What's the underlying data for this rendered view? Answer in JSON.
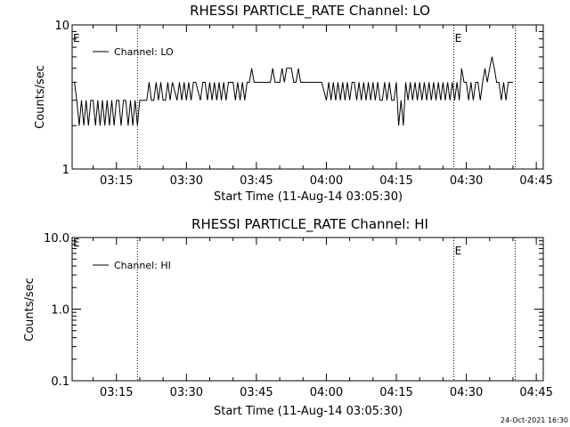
{
  "timestamp": "24-Oct-2021 16:30",
  "chart_data": [
    {
      "type": "line",
      "title": "RHESSI PARTICLE_RATE Channel: LO",
      "xlabel": "Start Time (11-Aug-14 03:05:30)",
      "ylabel": "Counts/sec",
      "y_scale": "log",
      "ylim": [
        1,
        10
      ],
      "y_ticks": [
        {
          "value": 1,
          "label": "1"
        },
        {
          "value": 10,
          "label": "10"
        }
      ],
      "xlim": [
        "03:05:30",
        "04:46:30"
      ],
      "x_ticks": [
        "03:15",
        "03:30",
        "03:45",
        "04:00",
        "04:15",
        "04:30",
        "04:45"
      ],
      "legend": {
        "placement": "top-left",
        "entries": [
          "Channel: LO"
        ]
      },
      "markers": [
        {
          "time": "03:19:30",
          "label": ""
        },
        {
          "time": "04:27:20",
          "label": "E"
        },
        {
          "time": "04:40:30",
          "label": ""
        }
      ],
      "left_flag": "E",
      "series": [
        {
          "name": "Channel: LO",
          "x": [
            "03:06:00",
            "03:06:30",
            "03:07:00",
            "03:07:30",
            "03:08:00",
            "03:08:30",
            "03:09:00",
            "03:09:30",
            "03:10:00",
            "03:10:30",
            "03:11:00",
            "03:11:30",
            "03:12:00",
            "03:12:30",
            "03:13:00",
            "03:13:30",
            "03:14:00",
            "03:14:30",
            "03:15:00",
            "03:15:30",
            "03:16:00",
            "03:16:30",
            "03:17:00",
            "03:17:30",
            "03:18:00",
            "03:18:30",
            "03:19:00",
            "03:19:30",
            "03:20:00",
            "03:21:00",
            "03:21:30",
            "03:22:00",
            "03:22:30",
            "03:23:00",
            "03:23:30",
            "03:24:00",
            "03:24:30",
            "03:25:00",
            "03:25:30",
            "03:26:00",
            "03:26:30",
            "03:27:00",
            "03:28:00",
            "03:28:30",
            "03:29:00",
            "03:29:30",
            "03:30:00",
            "03:30:30",
            "03:31:00",
            "03:31:30",
            "03:32:00",
            "03:33:00",
            "03:33:30",
            "03:34:00",
            "03:34:30",
            "03:35:00",
            "03:35:30",
            "03:36:00",
            "03:36:30",
            "03:37:00",
            "03:37:30",
            "03:38:00",
            "03:38:30",
            "03:39:00",
            "03:40:00",
            "03:40:30",
            "03:41:00",
            "03:41:30",
            "03:42:00",
            "03:42:30",
            "03:43:00",
            "03:43:30",
            "03:44:00",
            "03:44:30",
            "03:45:00",
            "03:45:30",
            "03:46:00",
            "03:46:30",
            "03:47:00",
            "03:47:30",
            "03:48:00",
            "03:48:30",
            "03:49:00",
            "03:49:30",
            "03:50:00",
            "03:50:30",
            "03:51:00",
            "03:51:30",
            "03:52:00",
            "03:52:30",
            "03:53:00",
            "03:53:30",
            "03:54:00",
            "03:54:30",
            "03:55:00",
            "03:56:00",
            "03:57:00",
            "03:58:00",
            "03:59:00",
            "04:00:00",
            "04:00:30",
            "04:01:00",
            "04:01:30",
            "04:02:00",
            "04:02:30",
            "04:03:00",
            "04:03:30",
            "04:04:00",
            "04:04:30",
            "04:05:00",
            "04:05:30",
            "04:06:00",
            "04:06:30",
            "04:07:00",
            "04:07:30",
            "04:08:00",
            "04:08:30",
            "04:09:00",
            "04:09:30",
            "04:10:00",
            "04:10:30",
            "04:11:00",
            "04:11:30",
            "04:12:00",
            "04:12:30",
            "04:13:00",
            "04:13:30",
            "04:14:00",
            "04:14:30",
            "04:15:00",
            "04:15:30",
            "04:16:00",
            "04:16:30",
            "04:17:00",
            "04:17:30",
            "04:18:00",
            "04:18:30",
            "04:19:00",
            "04:19:30",
            "04:20:00",
            "04:20:30",
            "04:21:00",
            "04:21:30",
            "04:22:00",
            "04:22:30",
            "04:23:00",
            "04:23:30",
            "04:24:00",
            "04:24:30",
            "04:25:00",
            "04:25:30",
            "04:26:00",
            "04:26:30",
            "04:27:00",
            "04:27:30",
            "04:28:00",
            "04:28:30",
            "04:29:00",
            "04:29:30",
            "04:30:00",
            "04:30:30",
            "04:31:00",
            "04:31:30",
            "04:32:00",
            "04:32:30",
            "04:33:00",
            "04:33:30",
            "04:34:00",
            "04:34:30",
            "04:35:00",
            "04:35:30",
            "04:36:00",
            "04:36:30",
            "04:37:00",
            "04:37:30",
            "04:38:00",
            "04:38:30",
            "04:39:00",
            "04:39:30",
            "04:40:00"
          ],
          "y": [
            4,
            3,
            2,
            3,
            2,
            3,
            2,
            3,
            3,
            2,
            3,
            2,
            3,
            2,
            3,
            2,
            3,
            2,
            3,
            3,
            2,
            3,
            3,
            2,
            3,
            2,
            3,
            2,
            3,
            3,
            3,
            4,
            3,
            3,
            4,
            3,
            4,
            3,
            3,
            4,
            3,
            4,
            3,
            4,
            3,
            4,
            3,
            4,
            3,
            4,
            4,
            3,
            4,
            4,
            3,
            4,
            3,
            4,
            3,
            4,
            3,
            4,
            3,
            4,
            4,
            3,
            4,
            3,
            4,
            3,
            4,
            4,
            5,
            4,
            4,
            4,
            4,
            4,
            4,
            4,
            4,
            5,
            4,
            4,
            4,
            5,
            4,
            5,
            5,
            5,
            4,
            4,
            5,
            4,
            4,
            4,
            4,
            4,
            4,
            3,
            4,
            3,
            4,
            3,
            4,
            3,
            4,
            3,
            4,
            3,
            4,
            4,
            3,
            4,
            3,
            4,
            3,
            4,
            3,
            4,
            3,
            4,
            3,
            3,
            4,
            3,
            4,
            3,
            3,
            4,
            2,
            3,
            2,
            4,
            3,
            4,
            3,
            4,
            3,
            4,
            3,
            4,
            3,
            4,
            3,
            4,
            3,
            4,
            3,
            4,
            3,
            4,
            3,
            4,
            3,
            4,
            3,
            5,
            4,
            4,
            3,
            4,
            3,
            4,
            4,
            3,
            4,
            5,
            4,
            5,
            6,
            5,
            4,
            4,
            3,
            4,
            3,
            4,
            4,
            4
          ]
        }
      ]
    },
    {
      "type": "line",
      "title": "RHESSI PARTICLE_RATE Channel: HI",
      "xlabel": "Start Time (11-Aug-14 03:05:30)",
      "ylabel": "Counts/sec",
      "y_scale": "log",
      "ylim": [
        0.1,
        10
      ],
      "y_ticks": [
        {
          "value": 0.1,
          "label": "0.1"
        },
        {
          "value": 1,
          "label": "1.0"
        },
        {
          "value": 10,
          "label": "10.0"
        }
      ],
      "xlim": [
        "03:05:30",
        "04:46:30"
      ],
      "x_ticks": [
        "03:15",
        "03:30",
        "03:45",
        "04:00",
        "04:15",
        "04:30",
        "04:45"
      ],
      "legend": {
        "placement": "top-left",
        "entries": [
          "Channel: HI"
        ]
      },
      "markers": [
        {
          "time": "03:19:30",
          "label": ""
        },
        {
          "time": "04:27:20",
          "label": "E"
        },
        {
          "time": "04:40:30",
          "label": ""
        }
      ],
      "left_flag": "E",
      "series": [
        {
          "name": "Channel: HI",
          "x": [],
          "y": []
        }
      ]
    }
  ]
}
